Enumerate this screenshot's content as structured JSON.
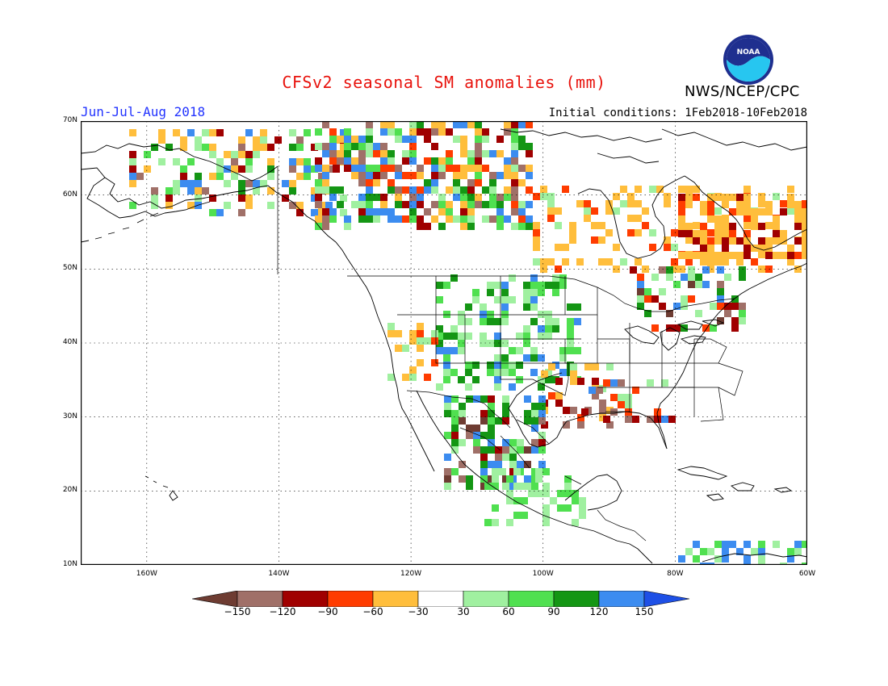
{
  "header": {
    "title": "CFSv2 seasonal SM anomalies (mm)",
    "organization": "NWS/NCEP/CPC",
    "logo_text": "NOAA",
    "season": "Jun-Jul-Aug 2018",
    "initial_conditions": "Initial conditions: 1Feb2018-10Feb2018"
  },
  "map": {
    "region": "North America",
    "projection": "latitude-longitude",
    "lon_range": [
      -170,
      -60
    ],
    "lat_range": [
      10,
      70
    ],
    "grid": "dotted",
    "lat_labels": [
      "70N",
      "60N",
      "50N",
      "40N",
      "30N",
      "20N",
      "10N"
    ],
    "lon_labels": [
      "160W",
      "140W",
      "120W",
      "100W",
      "80W",
      "60W"
    ]
  },
  "colorbar": {
    "labels": [
      "-150",
      "-120",
      "-90",
      "-60",
      "-30",
      "30",
      "60",
      "90",
      "120",
      "150"
    ],
    "colors": [
      "#6e3c32",
      "#a07068",
      "#a00000",
      "#ff3c00",
      "#ffbe3c",
      "#ffffff",
      "#a0f0a0",
      "#50e050",
      "#149614",
      "#3c8cf0",
      "#1e50e6"
    ]
  }
}
